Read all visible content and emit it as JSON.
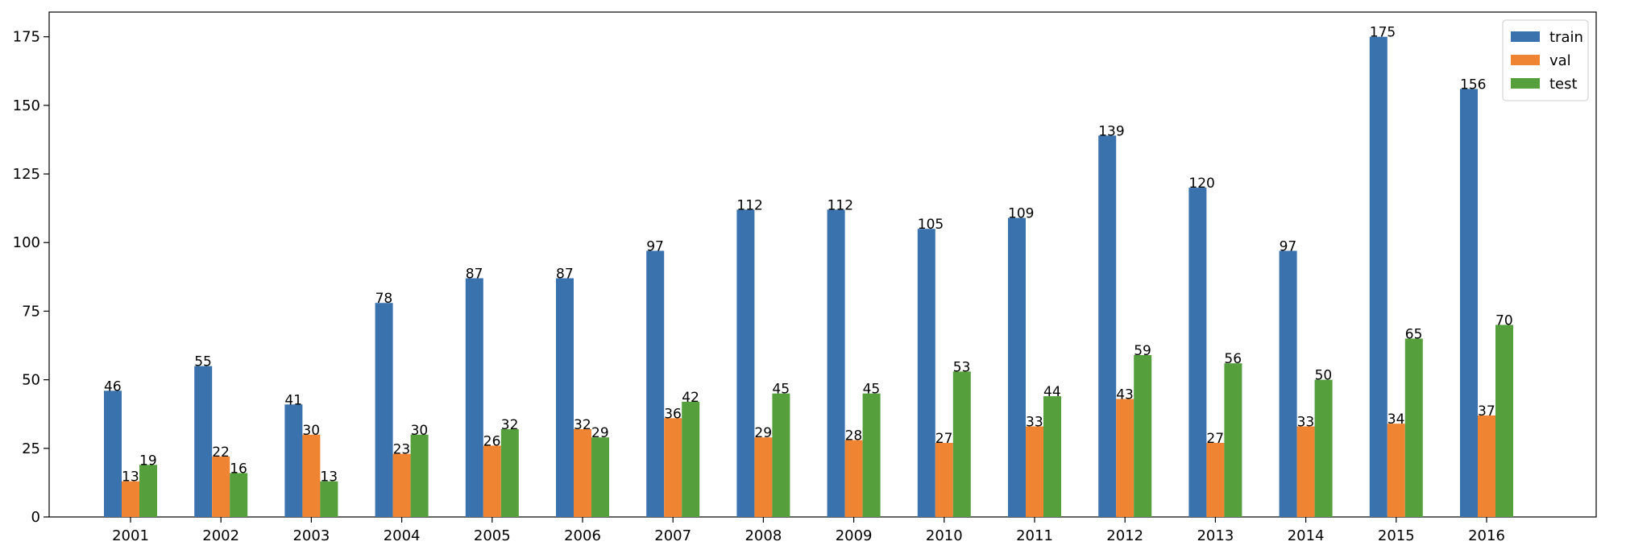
{
  "chart_data": {
    "type": "bar",
    "title": "",
    "xlabel": "",
    "ylabel": "",
    "categories": [
      "2001",
      "2002",
      "2003",
      "2004",
      "2005",
      "2006",
      "2007",
      "2008",
      "2009",
      "2010",
      "2011",
      "2012",
      "2013",
      "2014",
      "2015",
      "2016"
    ],
    "series": [
      {
        "name": "train",
        "color": "#3a72ae",
        "values": [
          46,
          55,
          41,
          78,
          87,
          87,
          97,
          112,
          112,
          105,
          109,
          139,
          120,
          97,
          175,
          156
        ]
      },
      {
        "name": "val",
        "color": "#ef8532",
        "values": [
          13,
          22,
          30,
          23,
          26,
          32,
          36,
          29,
          28,
          27,
          33,
          43,
          27,
          33,
          34,
          37
        ]
      },
      {
        "name": "test",
        "color": "#55a03c",
        "values": [
          19,
          16,
          13,
          30,
          32,
          29,
          42,
          45,
          45,
          53,
          44,
          59,
          56,
          50,
          65,
          70
        ]
      }
    ],
    "ylim": [
      0,
      184
    ],
    "yticks": [
      0,
      25,
      50,
      75,
      100,
      125,
      150,
      175
    ],
    "grid": false,
    "legend_position": "top-right",
    "data_labels": true
  }
}
